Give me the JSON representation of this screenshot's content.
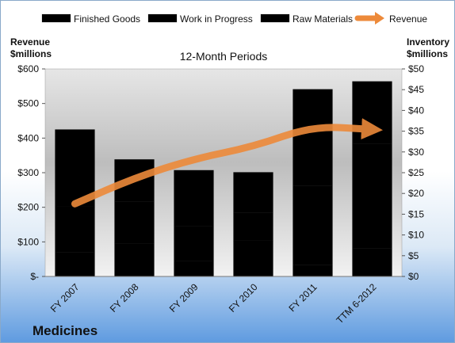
{
  "chart_data": {
    "type": "bar",
    "stacked": true,
    "subtitle": "12-Month Periods",
    "footer_title": "Medicines",
    "y_left_label": [
      "Revenue",
      "$millions"
    ],
    "y_right_label": [
      "Inventory",
      "$millions"
    ],
    "categories": [
      "FY 2007",
      "FY 2008",
      "FY 2009",
      "FY 2010",
      "FY 2011",
      "TTM 6-2012"
    ],
    "ylim_left": [
      0,
      600
    ],
    "ylim_right": [
      0,
      50
    ],
    "y_left_ticks": [
      0,
      100,
      200,
      300,
      400,
      500,
      600
    ],
    "y_left_tick_labels": [
      "$-",
      "$100",
      "$200",
      "$300",
      "$400",
      "$500",
      "$600"
    ],
    "y_right_ticks": [
      0,
      5,
      10,
      15,
      20,
      25,
      30,
      35,
      40,
      45,
      50
    ],
    "y_right_tick_labels": [
      "$0",
      "$5",
      "$10",
      "$15",
      "$20",
      "$25",
      "$30",
      "$35",
      "$40",
      "$45",
      "$50"
    ],
    "series": [
      {
        "name": "Finished Goods",
        "axis": "right",
        "color": "#d92b2b",
        "values": [
          5.8,
          8.0,
          3.7,
          8.6,
          2.7,
          6.8
        ]
      },
      {
        "name": "Work in Progress",
        "axis": "right",
        "color": "#5b84c0",
        "values": [
          11.0,
          10.0,
          8.4,
          6.7,
          19.2,
          25.2
        ]
      },
      {
        "name": "Raw Materials",
        "axis": "right",
        "color": "#8bb04f",
        "values": [
          18.6,
          10.2,
          13.5,
          9.8,
          23.2,
          15.0
        ]
      }
    ],
    "line_series": {
      "name": "Revenue",
      "axis": "left",
      "color": "#ed8a3a",
      "values": [
        210,
        285,
        340,
        375,
        435,
        425
      ]
    },
    "legend_position": "top",
    "grid": false
  }
}
